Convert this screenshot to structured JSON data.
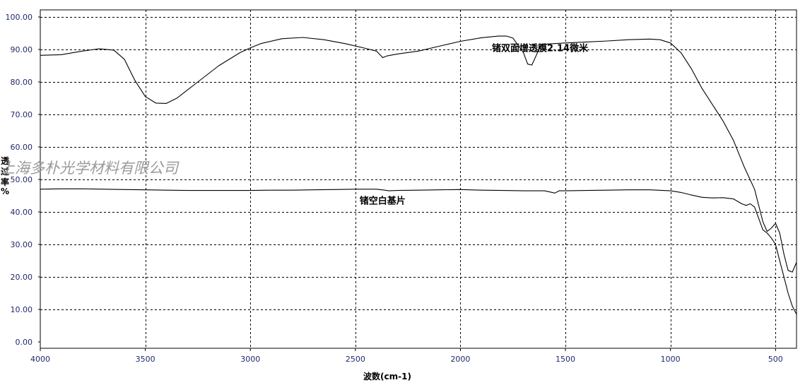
{
  "chart_data": {
    "type": "line",
    "xlabel": "波数(cm-1)",
    "ylabel": "透过率%",
    "x_reversed": true,
    "xlim": [
      4000,
      400
    ],
    "ylim": [
      0,
      100
    ],
    "xticks": [
      4000,
      3500,
      3000,
      2500,
      2000,
      1500,
      1000,
      500
    ],
    "xtick_labels": [
      "4000",
      "3500",
      "3000",
      "2500",
      "2000",
      "1500",
      "1000",
      "500"
    ],
    "yticks": [
      0,
      10,
      20,
      30,
      40,
      50,
      60,
      70,
      80,
      90,
      100
    ],
    "ytick_labels": [
      "0.00",
      "10.00",
      "20.00",
      "30.00",
      "40.00",
      "50.00",
      "60.00",
      "70.00",
      "80.00",
      "90.00",
      "100.00"
    ],
    "grid": true,
    "series": [
      {
        "name": "锗双面增透膜2.14微米",
        "color": "#000000",
        "x": [
          4000,
          3900,
          3800,
          3720,
          3650,
          3600,
          3550,
          3500,
          3450,
          3400,
          3350,
          3250,
          3150,
          3050,
          3000,
          2950,
          2850,
          2750,
          2650,
          2550,
          2450,
          2400,
          2370,
          2350,
          2300,
          2200,
          2100,
          2000,
          1900,
          1820,
          1780,
          1750,
          1700,
          1680,
          1660,
          1640,
          1620,
          1600,
          1500,
          1400,
          1300,
          1200,
          1100,
          1050,
          1000,
          950,
          900,
          850,
          800,
          750,
          700,
          650,
          600,
          580,
          560,
          540,
          520,
          500,
          480,
          460,
          440,
          420,
          400
        ],
        "y": [
          88.2,
          88.4,
          89.5,
          90.2,
          89.8,
          87.0,
          80.5,
          75.5,
          73.5,
          73.4,
          75.0,
          80.0,
          85.0,
          89.0,
          90.5,
          91.8,
          93.3,
          93.7,
          93.0,
          91.8,
          90.3,
          89.5,
          87.5,
          88.0,
          88.6,
          89.5,
          91.0,
          92.5,
          93.6,
          94.1,
          94.1,
          93.5,
          89.0,
          85.5,
          85.2,
          88.0,
          91.0,
          91.6,
          92.0,
          92.3,
          92.6,
          93.0,
          93.2,
          93.0,
          92.0,
          89.0,
          84.0,
          78.0,
          73.0,
          68.0,
          62.0,
          54.0,
          47.0,
          42.0,
          37.0,
          34.0,
          35.0,
          36.5,
          33.5,
          27.0,
          22.0,
          21.5,
          24.5
        ]
      },
      {
        "name": "锗空白基片",
        "color": "#000000",
        "x": [
          4000,
          3900,
          3800,
          3700,
          3600,
          3500,
          3400,
          3300,
          3200,
          3100,
          3000,
          2900,
          2800,
          2700,
          2600,
          2500,
          2400,
          2360,
          2340,
          2300,
          2200,
          2100,
          2000,
          1900,
          1800,
          1700,
          1600,
          1550,
          1530,
          1500,
          1400,
          1300,
          1200,
          1100,
          1000,
          950,
          900,
          850,
          800,
          750,
          700,
          660,
          640,
          620,
          600,
          580,
          560,
          540,
          520,
          500,
          480,
          460,
          440,
          420,
          400
        ],
        "y": [
          47.0,
          47.1,
          47.1,
          47.0,
          46.9,
          46.8,
          46.7,
          46.6,
          46.6,
          46.6,
          46.6,
          46.7,
          46.7,
          46.8,
          46.9,
          47.0,
          47.0,
          46.7,
          46.5,
          46.6,
          46.7,
          46.8,
          46.9,
          46.7,
          46.6,
          46.5,
          46.5,
          45.8,
          46.5,
          46.5,
          46.6,
          46.7,
          46.8,
          46.8,
          46.5,
          46.0,
          45.2,
          44.5,
          44.3,
          44.4,
          44.0,
          42.5,
          42.0,
          42.5,
          41.5,
          38.0,
          34.5,
          33.5,
          32.0,
          30.0,
          25.0,
          20.0,
          15.0,
          11.0,
          8.5
        ]
      }
    ],
    "annotations": [
      {
        "text": "锗双面增透膜2.14微米",
        "x": 1850,
        "y": 89.5,
        "series": 0
      },
      {
        "text": "锗空白基片",
        "x": 2480,
        "y": 42.5,
        "series": 1
      }
    ]
  },
  "watermark": "上海多朴光学材料有限公司",
  "axis_label_y_chars": [
    "透",
    "过",
    "率",
    "%"
  ],
  "colors": {
    "axis_text": "#1f2a6b",
    "grid": "#000000",
    "line": "#000000",
    "background": "#ffffff"
  }
}
